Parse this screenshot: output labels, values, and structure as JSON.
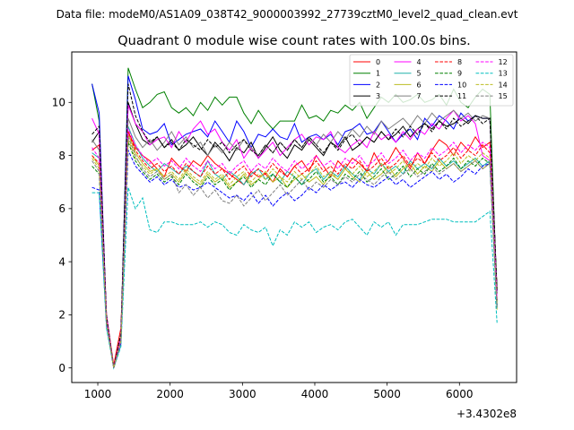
{
  "figure": {
    "suptitle": "Data file: modeM0/AS1A09_038T42_9000003992_27739cztM0_level2_quad_clean.evt",
    "offset_label": "+3.4302e8"
  },
  "chart_data": {
    "type": "line",
    "title": "Quadrant 0 module wise count rates with 100.0s bins.",
    "xlabel": "",
    "ylabel": "",
    "xlim": [
      640,
      6790
    ],
    "ylim": [
      -0.55,
      11.9
    ],
    "xticks": [
      1000,
      2000,
      3000,
      4000,
      5000,
      6000
    ],
    "yticks": [
      0,
      2,
      4,
      6,
      8,
      10
    ],
    "grid": false,
    "legend_position": "top-right",
    "legend_columns": 4,
    "x": [
      920,
      1020,
      1120,
      1220,
      1320,
      1420,
      1520,
      1620,
      1720,
      1820,
      1920,
      2020,
      2120,
      2220,
      2320,
      2420,
      2520,
      2620,
      2720,
      2820,
      2920,
      3020,
      3120,
      3220,
      3320,
      3420,
      3520,
      3620,
      3720,
      3820,
      3920,
      4020,
      4120,
      4220,
      4320,
      4420,
      4520,
      4620,
      4720,
      4820,
      4920,
      5020,
      5120,
      5220,
      5320,
      5420,
      5520,
      5620,
      5720,
      5820,
      5920,
      6020,
      6120,
      6220,
      6320,
      6420,
      6520
    ],
    "series": [
      {
        "name": "0",
        "color": "#ff0000",
        "style": "solid",
        "values": [
          8.2,
          8.4,
          2.0,
          0.1,
          1.5,
          8.9,
          8.3,
          8.0,
          7.8,
          7.5,
          7.2,
          7.9,
          7.6,
          7.4,
          7.8,
          7.6,
          8.0,
          7.7,
          7.5,
          7.3,
          7.1,
          6.9,
          7.4,
          7.2,
          7.3,
          7.0,
          7.5,
          7.2,
          7.6,
          7.8,
          7.4,
          8.0,
          7.6,
          7.2,
          7.8,
          7.5,
          7.9,
          7.7,
          7.4,
          8.1,
          7.6,
          7.8,
          8.3,
          7.9,
          7.5,
          8.1,
          7.7,
          8.2,
          8.6,
          8.4,
          8.0,
          8.5,
          8.2,
          8.7,
          8.3,
          8.5,
          3.0
        ]
      },
      {
        "name": "1",
        "color": "#008000",
        "style": "solid",
        "values": [
          10.7,
          9.3,
          1.7,
          0.0,
          1.0,
          11.3,
          10.5,
          9.8,
          10.0,
          10.3,
          10.4,
          9.8,
          9.6,
          9.8,
          9.5,
          10.0,
          9.7,
          10.2,
          9.9,
          10.2,
          10.2,
          9.6,
          9.2,
          9.7,
          9.3,
          9.0,
          9.3,
          9.3,
          9.3,
          9.9,
          9.4,
          9.5,
          9.3,
          9.7,
          9.6,
          9.9,
          9.7,
          10.0,
          9.4,
          9.8,
          10.2,
          10.0,
          10.3,
          10.0,
          10.1,
          10.3,
          10.0,
          10.1,
          10.3,
          9.9,
          10.5,
          10.0,
          9.8,
          10.2,
          10.5,
          10.3,
          2.5
        ]
      },
      {
        "name": "2",
        "color": "#0000ff",
        "style": "solid",
        "values": [
          10.7,
          9.6,
          1.8,
          0.0,
          1.1,
          11.0,
          10.1,
          9.0,
          8.8,
          8.9,
          9.2,
          8.4,
          8.6,
          8.8,
          8.9,
          9.0,
          8.7,
          9.3,
          8.9,
          8.5,
          9.3,
          8.9,
          8.3,
          8.8,
          8.7,
          9.0,
          8.7,
          8.6,
          9.2,
          8.5,
          8.7,
          8.8,
          8.6,
          8.8,
          8.4,
          8.9,
          9.0,
          9.2,
          8.8,
          8.9,
          9.3,
          8.9,
          8.5,
          8.8,
          9.0,
          8.6,
          9.4,
          9.1,
          9.5,
          9.3,
          9.0,
          9.6,
          9.3,
          9.5,
          9.4,
          9.4,
          2.8
        ]
      },
      {
        "name": "3",
        "color": "#000000",
        "style": "solid",
        "values": [
          8.5,
          8.9,
          1.9,
          0.0,
          1.2,
          10.0,
          9.2,
          8.6,
          8.4,
          8.7,
          8.3,
          8.6,
          8.2,
          8.4,
          8.7,
          8.3,
          8.0,
          8.5,
          8.2,
          7.8,
          8.3,
          8.1,
          8.5,
          7.9,
          8.3,
          8.7,
          8.2,
          7.9,
          8.4,
          8.2,
          8.6,
          8.3,
          8.0,
          8.5,
          8.3,
          8.7,
          8.2,
          8.4,
          8.7,
          8.5,
          8.9,
          8.6,
          8.8,
          9.1,
          8.7,
          9.0,
          9.2,
          9.0,
          9.3,
          9.1,
          9.2,
          9.4,
          9.2,
          9.5,
          9.4,
          9.4,
          2.9
        ]
      },
      {
        "name": "4",
        "color": "#ff00ff",
        "style": "solid",
        "values": [
          9.4,
          8.8,
          2.0,
          0.0,
          1.2,
          9.9,
          9.2,
          8.9,
          8.4,
          8.6,
          8.7,
          8.3,
          8.9,
          8.5,
          9.0,
          9.3,
          8.8,
          9.0,
          8.5,
          8.2,
          8.6,
          7.9,
          8.3,
          7.9,
          8.2,
          8.5,
          8.0,
          8.3,
          8.6,
          8.8,
          8.4,
          8.7,
          8.6,
          8.9,
          8.3,
          8.1,
          8.4,
          8.6,
          8.3,
          8.9,
          8.6,
          8.8,
          8.5,
          8.9,
          8.6,
          9.0,
          8.8,
          9.2,
          9.0,
          9.4,
          9.7,
          9.3,
          9.5,
          9.2,
          8.0,
          7.8,
          2.6
        ]
      },
      {
        "name": "5",
        "color": "#20b2aa",
        "style": "solid",
        "values": [
          8.1,
          7.9,
          1.8,
          0.0,
          1.1,
          9.1,
          8.4,
          7.9,
          7.6,
          7.4,
          7.7,
          7.5,
          7.3,
          7.6,
          7.4,
          7.2,
          7.8,
          7.3,
          7.1,
          7.4,
          7.2,
          6.9,
          7.3,
          7.5,
          7.1,
          7.3,
          7.0,
          7.4,
          7.2,
          6.9,
          7.3,
          7.5,
          7.1,
          7.4,
          7.2,
          7.6,
          7.3,
          7.1,
          7.5,
          7.3,
          7.7,
          7.4,
          7.6,
          7.3,
          7.8,
          7.5,
          7.7,
          7.5,
          7.9,
          7.6,
          7.8,
          7.5,
          7.7,
          7.9,
          7.6,
          7.8,
          2.3
        ]
      },
      {
        "name": "6",
        "color": "#bcbd22",
        "style": "solid",
        "values": [
          8.0,
          7.6,
          1.7,
          0.0,
          1.0,
          8.8,
          8.1,
          7.7,
          7.4,
          7.5,
          7.1,
          7.3,
          7.0,
          7.4,
          7.1,
          6.9,
          7.3,
          7.0,
          7.2,
          6.8,
          7.0,
          7.3,
          6.9,
          7.1,
          7.4,
          7.0,
          7.2,
          6.8,
          7.1,
          7.3,
          7.0,
          7.2,
          6.9,
          7.3,
          7.1,
          7.5,
          7.2,
          7.0,
          7.4,
          7.1,
          7.3,
          7.6,
          7.2,
          7.5,
          7.7,
          7.3,
          7.6,
          7.4,
          7.8,
          7.5,
          7.7,
          7.4,
          7.6,
          7.8,
          7.5,
          7.7,
          2.2
        ]
      },
      {
        "name": "7",
        "color": "#7f7f7f",
        "style": "solid",
        "values": [
          8.6,
          8.2,
          1.8,
          0.0,
          1.1,
          9.4,
          8.7,
          8.3,
          8.6,
          8.2,
          8.5,
          8.9,
          8.4,
          8.7,
          8.3,
          8.5,
          8.0,
          8.4,
          8.1,
          8.5,
          8.2,
          8.6,
          8.3,
          8.0,
          8.4,
          8.1,
          8.5,
          8.2,
          8.6,
          8.3,
          8.7,
          8.4,
          8.8,
          8.5,
          8.9,
          8.6,
          9.0,
          8.7,
          9.1,
          8.8,
          9.3,
          9.0,
          9.2,
          9.4,
          9.1,
          9.5,
          9.2,
          9.6,
          9.3,
          9.5,
          9.7,
          9.4,
          9.6,
          9.3,
          9.5,
          9.4,
          2.8
        ]
      },
      {
        "name": "8",
        "color": "#ff0000",
        "style": "dashed",
        "values": [
          8.0,
          7.7,
          1.8,
          0.0,
          1.0,
          8.9,
          8.2,
          7.8,
          7.5,
          7.7,
          7.4,
          7.6,
          7.3,
          7.7,
          7.4,
          7.2,
          7.6,
          7.3,
          7.5,
          7.1,
          7.4,
          7.6,
          7.2,
          7.5,
          7.3,
          7.7,
          7.4,
          7.2,
          7.6,
          7.3,
          7.5,
          7.8,
          7.4,
          7.6,
          7.3,
          7.7,
          7.5,
          7.8,
          7.4,
          7.6,
          7.9,
          7.5,
          7.7,
          8.0,
          7.6,
          7.9,
          7.7,
          8.1,
          7.8,
          8.0,
          8.3,
          7.9,
          8.2,
          8.0,
          8.4,
          8.1,
          2.5
        ]
      },
      {
        "name": "9",
        "color": "#008000",
        "style": "dashed",
        "values": [
          7.6,
          7.3,
          1.7,
          0.0,
          1.0,
          8.5,
          7.8,
          7.4,
          7.1,
          7.3,
          7.0,
          7.2,
          6.9,
          7.3,
          7.0,
          6.8,
          7.2,
          6.9,
          7.1,
          6.7,
          7.0,
          7.2,
          6.8,
          7.1,
          6.9,
          7.3,
          7.0,
          6.8,
          7.2,
          6.9,
          7.1,
          7.4,
          7.0,
          7.2,
          6.9,
          7.3,
          7.1,
          7.4,
          7.0,
          7.2,
          7.5,
          7.1,
          7.3,
          7.6,
          7.2,
          7.5,
          7.3,
          7.7,
          7.4,
          7.6,
          7.9,
          7.5,
          7.8,
          7.6,
          7.9,
          7.7,
          2.3
        ]
      },
      {
        "name": "10",
        "color": "#0000ff",
        "style": "dashed",
        "values": [
          6.8,
          6.7,
          1.6,
          0.0,
          0.9,
          8.2,
          7.6,
          7.3,
          7.0,
          7.2,
          6.9,
          7.1,
          6.8,
          6.9,
          6.7,
          6.8,
          7.0,
          6.8,
          6.6,
          6.4,
          6.5,
          6.3,
          6.6,
          6.2,
          6.5,
          6.1,
          6.4,
          6.6,
          6.3,
          6.5,
          6.8,
          6.6,
          6.9,
          6.7,
          6.9,
          7.0,
          6.8,
          7.1,
          6.9,
          6.8,
          7.0,
          7.2,
          6.9,
          7.1,
          6.8,
          7.0,
          7.2,
          7.4,
          7.1,
          7.3,
          7.0,
          7.2,
          7.5,
          7.3,
          7.6,
          7.7,
          2.4
        ]
      },
      {
        "name": "11",
        "color": "#000000",
        "style": "dashed",
        "values": [
          8.8,
          9.1,
          2.0,
          0.0,
          1.3,
          10.7,
          9.5,
          8.9,
          8.5,
          8.7,
          8.3,
          8.5,
          8.2,
          8.6,
          8.4,
          8.2,
          8.6,
          8.3,
          8.5,
          8.1,
          8.4,
          8.6,
          8.2,
          8.0,
          8.4,
          8.1,
          8.5,
          8.2,
          8.6,
          8.3,
          8.7,
          8.4,
          8.1,
          8.5,
          8.2,
          8.6,
          8.8,
          8.4,
          8.7,
          8.5,
          8.9,
          8.6,
          9.0,
          8.7,
          9.1,
          8.8,
          9.2,
          8.9,
          9.3,
          9.0,
          9.4,
          9.1,
          9.3,
          9.5,
          9.2,
          9.4,
          2.9
        ]
      },
      {
        "name": "12",
        "color": "#ff00ff",
        "style": "dashed",
        "values": [
          8.3,
          7.9,
          1.8,
          0.0,
          1.1,
          9.0,
          8.4,
          8.0,
          7.7,
          7.9,
          7.6,
          7.8,
          7.5,
          7.9,
          7.6,
          7.4,
          7.8,
          7.5,
          7.7,
          7.3,
          7.6,
          7.8,
          7.4,
          7.7,
          7.5,
          7.9,
          7.6,
          7.4,
          7.8,
          7.5,
          7.7,
          8.0,
          7.6,
          7.8,
          7.5,
          7.9,
          7.7,
          8.0,
          7.6,
          7.8,
          8.1,
          7.7,
          7.9,
          8.2,
          7.8,
          8.1,
          7.9,
          8.3,
          8.0,
          8.2,
          8.5,
          8.1,
          8.4,
          8.2,
          8.5,
          8.3,
          2.6
        ]
      },
      {
        "name": "13",
        "color": "#00bfbf",
        "style": "dashed",
        "values": [
          6.6,
          6.6,
          1.5,
          0.0,
          0.8,
          6.8,
          6.0,
          6.4,
          5.2,
          5.1,
          5.5,
          5.5,
          5.4,
          5.4,
          5.4,
          5.5,
          5.3,
          5.5,
          5.4,
          5.1,
          5.0,
          5.4,
          5.2,
          5.1,
          5.3,
          4.6,
          5.2,
          5.0,
          5.5,
          5.3,
          5.5,
          5.1,
          5.3,
          5.4,
          5.2,
          5.5,
          5.6,
          5.3,
          5.0,
          5.5,
          5.3,
          5.5,
          5.0,
          5.4,
          5.4,
          5.4,
          5.5,
          5.6,
          5.6,
          5.6,
          5.5,
          5.5,
          5.5,
          5.5,
          5.7,
          5.9,
          1.7
        ]
      },
      {
        "name": "14",
        "color": "#bcbd22",
        "style": "dashed",
        "values": [
          7.9,
          7.5,
          1.7,
          0.0,
          1.0,
          8.6,
          7.9,
          7.6,
          7.3,
          7.5,
          7.2,
          7.4,
          7.1,
          7.5,
          7.2,
          7.0,
          7.4,
          7.1,
          7.3,
          6.9,
          7.2,
          7.4,
          7.0,
          7.3,
          7.1,
          7.5,
          7.2,
          7.0,
          7.4,
          7.1,
          7.3,
          7.6,
          7.2,
          7.4,
          7.1,
          7.5,
          7.3,
          7.6,
          7.2,
          7.4,
          7.7,
          7.3,
          7.5,
          7.8,
          7.4,
          7.7,
          7.5,
          7.9,
          7.6,
          7.8,
          8.1,
          7.7,
          8.0,
          7.8,
          8.1,
          7.9,
          2.4
        ]
      },
      {
        "name": "15",
        "color": "#7f7f7f",
        "style": "dashed",
        "values": [
          7.8,
          7.4,
          1.7,
          0.0,
          1.0,
          8.7,
          8.0,
          7.5,
          7.2,
          7.4,
          7.1,
          7.3,
          6.6,
          6.9,
          6.5,
          6.8,
          6.4,
          6.7,
          6.3,
          6.2,
          6.5,
          6.1,
          6.4,
          6.7,
          6.3,
          6.6,
          6.9,
          6.5,
          6.8,
          7.1,
          6.7,
          7.0,
          6.8,
          7.1,
          6.9,
          7.2,
          7.0,
          7.3,
          7.1,
          6.9,
          7.2,
          7.4,
          7.1,
          7.3,
          7.5,
          7.2,
          7.4,
          7.6,
          7.3,
          7.5,
          7.7,
          7.4,
          7.6,
          7.8,
          7.5,
          7.7,
          2.2
        ]
      }
    ]
  }
}
